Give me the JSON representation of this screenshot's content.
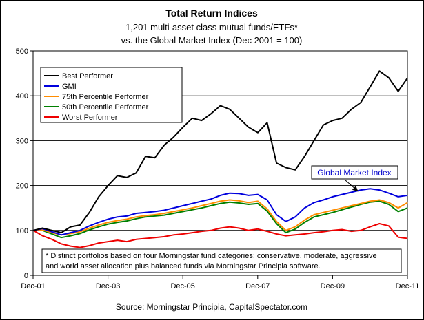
{
  "chart_data": {
    "type": "line",
    "title": "Total Return Indices",
    "subtitle_lines": [
      "1,201 multi-asset class mutual funds/ETFs*",
      "vs. the Global Market Index (Dec 2001 = 100)"
    ],
    "source": "Source: Morningstar Principia, CapitalSpectator.com",
    "xlabel": "",
    "ylabel": "",
    "xlim": [
      2001.917,
      2011.917
    ],
    "ylim": [
      0,
      500
    ],
    "yticks": [
      0,
      100,
      200,
      300,
      400,
      500
    ],
    "xticks": [
      {
        "label": "Dec-01",
        "x": 2001.917
      },
      {
        "label": "Dec-03",
        "x": 2003.917
      },
      {
        "label": "Dec-05",
        "x": 2005.917
      },
      {
        "label": "Dec-07",
        "x": 2007.917
      },
      {
        "label": "Dec-09",
        "x": 2009.917
      },
      {
        "label": "Dec-11",
        "x": 2011.917
      }
    ],
    "grid": "horizontal",
    "legend_position": "top-left",
    "callout": {
      "text": "Global Market Index",
      "x": 2010.6,
      "y": 193
    },
    "footnote_lines": [
      "* Distinct portfolios based on four Morningstar fund categories: conservative, moderate, aggressive",
      "and world asset allocation plus balanced funds via Morningstar Principia software."
    ],
    "series": [
      {
        "name": "Best Performer",
        "color": "#000000",
        "points": [
          [
            2001.92,
            100
          ],
          [
            2002.17,
            105
          ],
          [
            2002.42,
            100
          ],
          [
            2002.67,
            95
          ],
          [
            2002.92,
            108
          ],
          [
            2003.17,
            112
          ],
          [
            2003.42,
            140
          ],
          [
            2003.67,
            175
          ],
          [
            2003.92,
            200
          ],
          [
            2004.17,
            222
          ],
          [
            2004.42,
            218
          ],
          [
            2004.67,
            228
          ],
          [
            2004.92,
            265
          ],
          [
            2005.17,
            262
          ],
          [
            2005.42,
            290
          ],
          [
            2005.67,
            308
          ],
          [
            2005.92,
            330
          ],
          [
            2006.17,
            350
          ],
          [
            2006.42,
            345
          ],
          [
            2006.67,
            360
          ],
          [
            2006.92,
            378
          ],
          [
            2007.17,
            370
          ],
          [
            2007.42,
            350
          ],
          [
            2007.67,
            330
          ],
          [
            2007.92,
            318
          ],
          [
            2008.17,
            340
          ],
          [
            2008.42,
            250
          ],
          [
            2008.67,
            240
          ],
          [
            2008.92,
            235
          ],
          [
            2009.17,
            265
          ],
          [
            2009.42,
            300
          ],
          [
            2009.67,
            335
          ],
          [
            2009.92,
            345
          ],
          [
            2010.17,
            350
          ],
          [
            2010.42,
            370
          ],
          [
            2010.67,
            385
          ],
          [
            2010.92,
            420
          ],
          [
            2011.17,
            455
          ],
          [
            2011.42,
            440
          ],
          [
            2011.67,
            410
          ],
          [
            2011.92,
            440
          ]
        ]
      },
      {
        "name": "GMI",
        "color": "#0000dd",
        "points": [
          [
            2001.92,
            100
          ],
          [
            2002.17,
            104
          ],
          [
            2002.42,
            97
          ],
          [
            2002.67,
            90
          ],
          [
            2002.92,
            95
          ],
          [
            2003.17,
            100
          ],
          [
            2003.42,
            110
          ],
          [
            2003.67,
            118
          ],
          [
            2003.92,
            125
          ],
          [
            2004.17,
            130
          ],
          [
            2004.42,
            132
          ],
          [
            2004.67,
            138
          ],
          [
            2004.92,
            140
          ],
          [
            2005.17,
            142
          ],
          [
            2005.42,
            145
          ],
          [
            2005.67,
            150
          ],
          [
            2005.92,
            155
          ],
          [
            2006.17,
            160
          ],
          [
            2006.42,
            165
          ],
          [
            2006.67,
            170
          ],
          [
            2006.92,
            178
          ],
          [
            2007.17,
            183
          ],
          [
            2007.42,
            182
          ],
          [
            2007.67,
            178
          ],
          [
            2007.92,
            180
          ],
          [
            2008.17,
            168
          ],
          [
            2008.42,
            135
          ],
          [
            2008.67,
            120
          ],
          [
            2008.92,
            130
          ],
          [
            2009.17,
            150
          ],
          [
            2009.42,
            162
          ],
          [
            2009.67,
            168
          ],
          [
            2009.92,
            175
          ],
          [
            2010.17,
            180
          ],
          [
            2010.42,
            185
          ],
          [
            2010.67,
            190
          ],
          [
            2010.92,
            193
          ],
          [
            2011.17,
            190
          ],
          [
            2011.42,
            183
          ],
          [
            2011.67,
            175
          ],
          [
            2011.92,
            178
          ]
        ]
      },
      {
        "name": "75th Percentile Performer",
        "color": "#ff8c00",
        "points": [
          [
            2001.92,
            100
          ],
          [
            2002.17,
            101
          ],
          [
            2002.42,
            95
          ],
          [
            2002.67,
            90
          ],
          [
            2002.92,
            93
          ],
          [
            2003.17,
            97
          ],
          [
            2003.42,
            105
          ],
          [
            2003.67,
            112
          ],
          [
            2003.92,
            118
          ],
          [
            2004.17,
            122
          ],
          [
            2004.42,
            125
          ],
          [
            2004.67,
            130
          ],
          [
            2004.92,
            133
          ],
          [
            2005.17,
            135
          ],
          [
            2005.42,
            138
          ],
          [
            2005.67,
            142
          ],
          [
            2005.92,
            146
          ],
          [
            2006.17,
            150
          ],
          [
            2006.42,
            155
          ],
          [
            2006.67,
            160
          ],
          [
            2006.92,
            165
          ],
          [
            2007.17,
            168
          ],
          [
            2007.42,
            166
          ],
          [
            2007.67,
            162
          ],
          [
            2007.92,
            165
          ],
          [
            2008.17,
            148
          ],
          [
            2008.42,
            120
          ],
          [
            2008.67,
            100
          ],
          [
            2008.92,
            108
          ],
          [
            2009.17,
            123
          ],
          [
            2009.42,
            135
          ],
          [
            2009.67,
            140
          ],
          [
            2009.92,
            145
          ],
          [
            2010.17,
            150
          ],
          [
            2010.42,
            155
          ],
          [
            2010.67,
            160
          ],
          [
            2010.92,
            165
          ],
          [
            2011.17,
            168
          ],
          [
            2011.42,
            162
          ],
          [
            2011.67,
            150
          ],
          [
            2011.92,
            162
          ]
        ]
      },
      {
        "name": "50th Percentile Performer",
        "color": "#008000",
        "points": [
          [
            2001.92,
            100
          ],
          [
            2002.17,
            100
          ],
          [
            2002.42,
            92
          ],
          [
            2002.67,
            84
          ],
          [
            2002.92,
            88
          ],
          [
            2003.17,
            93
          ],
          [
            2003.42,
            101
          ],
          [
            2003.67,
            108
          ],
          [
            2003.92,
            114
          ],
          [
            2004.17,
            118
          ],
          [
            2004.42,
            121
          ],
          [
            2004.67,
            126
          ],
          [
            2004.92,
            130
          ],
          [
            2005.17,
            132
          ],
          [
            2005.42,
            134
          ],
          [
            2005.67,
            138
          ],
          [
            2005.92,
            142
          ],
          [
            2006.17,
            146
          ],
          [
            2006.42,
            150
          ],
          [
            2006.67,
            155
          ],
          [
            2006.92,
            160
          ],
          [
            2007.17,
            163
          ],
          [
            2007.42,
            161
          ],
          [
            2007.67,
            158
          ],
          [
            2007.92,
            160
          ],
          [
            2008.17,
            143
          ],
          [
            2008.42,
            115
          ],
          [
            2008.67,
            95
          ],
          [
            2008.92,
            103
          ],
          [
            2009.17,
            118
          ],
          [
            2009.42,
            130
          ],
          [
            2009.67,
            135
          ],
          [
            2009.92,
            140
          ],
          [
            2010.17,
            146
          ],
          [
            2010.42,
            152
          ],
          [
            2010.67,
            158
          ],
          [
            2010.92,
            163
          ],
          [
            2011.17,
            165
          ],
          [
            2011.42,
            158
          ],
          [
            2011.67,
            142
          ],
          [
            2011.92,
            150
          ]
        ]
      },
      {
        "name": "Worst Performer",
        "color": "#ee0000",
        "points": [
          [
            2001.92,
            100
          ],
          [
            2002.17,
            88
          ],
          [
            2002.42,
            80
          ],
          [
            2002.67,
            70
          ],
          [
            2002.92,
            65
          ],
          [
            2003.17,
            62
          ],
          [
            2003.42,
            66
          ],
          [
            2003.67,
            72
          ],
          [
            2003.92,
            75
          ],
          [
            2004.17,
            78
          ],
          [
            2004.42,
            75
          ],
          [
            2004.67,
            80
          ],
          [
            2004.92,
            82
          ],
          [
            2005.17,
            84
          ],
          [
            2005.42,
            86
          ],
          [
            2005.67,
            90
          ],
          [
            2005.92,
            92
          ],
          [
            2006.17,
            95
          ],
          [
            2006.42,
            98
          ],
          [
            2006.67,
            100
          ],
          [
            2006.92,
            105
          ],
          [
            2007.17,
            108
          ],
          [
            2007.42,
            105
          ],
          [
            2007.67,
            100
          ],
          [
            2007.92,
            103
          ],
          [
            2008.17,
            98
          ],
          [
            2008.42,
            92
          ],
          [
            2008.67,
            88
          ],
          [
            2008.92,
            90
          ],
          [
            2009.17,
            92
          ],
          [
            2009.42,
            95
          ],
          [
            2009.67,
            97
          ],
          [
            2009.92,
            100
          ],
          [
            2010.17,
            102
          ],
          [
            2010.42,
            98
          ],
          [
            2010.67,
            100
          ],
          [
            2010.92,
            108
          ],
          [
            2011.17,
            115
          ],
          [
            2011.42,
            110
          ],
          [
            2011.67,
            85
          ],
          [
            2011.92,
            82
          ]
        ]
      }
    ]
  }
}
